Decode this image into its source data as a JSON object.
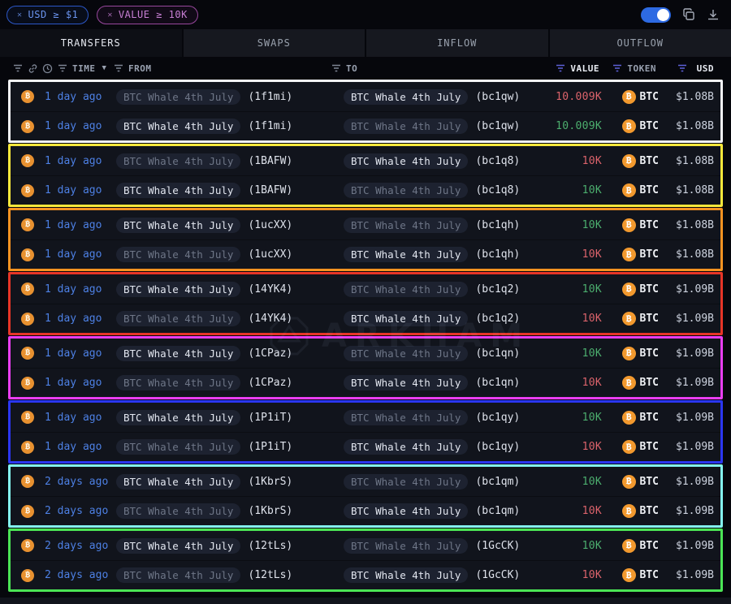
{
  "filters": [
    {
      "close": "✕",
      "label": "USD ≥ $1",
      "color": "#6a93ee"
    },
    {
      "close": "✕",
      "label": "VALUE ≥ 10K",
      "color": "#c77fd4"
    }
  ],
  "controls": {
    "toggle_on": true,
    "icons": [
      "toggle-switch",
      "copy-icon",
      "download-icon"
    ]
  },
  "tabs": [
    {
      "label": "TRANSFERS",
      "active": true
    },
    {
      "label": "SWAPS",
      "active": false
    },
    {
      "label": "INFLOW",
      "active": false
    },
    {
      "label": "OUTFLOW",
      "active": false
    }
  ],
  "columns": {
    "time": "TIME",
    "from": "FROM",
    "to": "TO",
    "value": "VALUE",
    "token": "TOKEN",
    "usd": "USD"
  },
  "header_icons": [
    "filter-icon",
    "link-icon",
    "clock-icon",
    "filter-icon",
    "caret-down-icon"
  ],
  "token": "BTC",
  "watermark": "ARKHAM",
  "colors": {
    "value_red": "#db636b",
    "value_green": "#4cae6e",
    "time_blue": "#4d80e4",
    "accent_toggle": "#2d6ae3",
    "btc_orange": "#f2992e"
  },
  "groups": [
    {
      "border": "#f2f3f5",
      "rows": [
        {
          "time": "1 day ago",
          "from_label": "BTC Whale 4th July",
          "from_addr": "(1f1mi)",
          "to_label": "BTC Whale 4th July",
          "to_addr": "(bc1qw)",
          "hl": "to",
          "dir": "out",
          "value": "10.009K",
          "usd": "$1.08B"
        },
        {
          "time": "1 day ago",
          "from_label": "BTC Whale 4th July",
          "from_addr": "(1f1mi)",
          "to_label": "BTC Whale 4th July",
          "to_addr": "(bc1qw)",
          "hl": "from",
          "dir": "in",
          "value": "10.009K",
          "usd": "$1.08B"
        }
      ]
    },
    {
      "border": "#f9e83b",
      "rows": [
        {
          "time": "1 day ago",
          "from_label": "BTC Whale 4th July",
          "from_addr": "(1BAFW)",
          "to_label": "BTC Whale 4th July",
          "to_addr": "(bc1q8)",
          "hl": "to",
          "dir": "out",
          "value": "10K",
          "usd": "$1.08B"
        },
        {
          "time": "1 day ago",
          "from_label": "BTC Whale 4th July",
          "from_addr": "(1BAFW)",
          "to_label": "BTC Whale 4th July",
          "to_addr": "(bc1q8)",
          "hl": "from",
          "dir": "in",
          "value": "10K",
          "usd": "$1.08B"
        }
      ]
    },
    {
      "border": "#f79321",
      "rows": [
        {
          "time": "1 day ago",
          "from_label": "BTC Whale 4th July",
          "from_addr": "(1ucXX)",
          "to_label": "BTC Whale 4th July",
          "to_addr": "(bc1qh)",
          "hl": "from",
          "dir": "in",
          "value": "10K",
          "usd": "$1.08B"
        },
        {
          "time": "1 day ago",
          "from_label": "BTC Whale 4th July",
          "from_addr": "(1ucXX)",
          "to_label": "BTC Whale 4th July",
          "to_addr": "(bc1qh)",
          "hl": "to",
          "dir": "out",
          "value": "10K",
          "usd": "$1.08B"
        }
      ]
    },
    {
      "border": "#e73527",
      "rows": [
        {
          "time": "1 day ago",
          "from_label": "BTC Whale 4th July",
          "from_addr": "(14YK4)",
          "to_label": "BTC Whale 4th July",
          "to_addr": "(bc1q2)",
          "hl": "from",
          "dir": "in",
          "value": "10K",
          "usd": "$1.09B"
        },
        {
          "time": "1 day ago",
          "from_label": "BTC Whale 4th July",
          "from_addr": "(14YK4)",
          "to_label": "BTC Whale 4th July",
          "to_addr": "(bc1q2)",
          "hl": "to",
          "dir": "out",
          "value": "10K",
          "usd": "$1.09B"
        }
      ]
    },
    {
      "border": "#ea3ef2",
      "rows": [
        {
          "time": "1 day ago",
          "from_label": "BTC Whale 4th July",
          "from_addr": "(1CPaz)",
          "to_label": "BTC Whale 4th July",
          "to_addr": "(bc1qn)",
          "hl": "from",
          "dir": "in",
          "value": "10K",
          "usd": "$1.09B"
        },
        {
          "time": "1 day ago",
          "from_label": "BTC Whale 4th July",
          "from_addr": "(1CPaz)",
          "to_label": "BTC Whale 4th July",
          "to_addr": "(bc1qn)",
          "hl": "to",
          "dir": "out",
          "value": "10K",
          "usd": "$1.09B"
        }
      ]
    },
    {
      "border": "#2b36f2",
      "rows": [
        {
          "time": "1 day ago",
          "from_label": "BTC Whale 4th July",
          "from_addr": "(1P1iT)",
          "to_label": "BTC Whale 4th July",
          "to_addr": "(bc1qy)",
          "hl": "from",
          "dir": "in",
          "value": "10K",
          "usd": "$1.09B"
        },
        {
          "time": "1 day ago",
          "from_label": "BTC Whale 4th July",
          "from_addr": "(1P1iT)",
          "to_label": "BTC Whale 4th July",
          "to_addr": "(bc1qy)",
          "hl": "to",
          "dir": "out",
          "value": "10K",
          "usd": "$1.09B"
        }
      ]
    },
    {
      "border": "#84f4ee",
      "rows": [
        {
          "time": "2 days ago",
          "from_label": "BTC Whale 4th July",
          "from_addr": "(1KbrS)",
          "to_label": "BTC Whale 4th July",
          "to_addr": "(bc1qm)",
          "hl": "from",
          "dir": "in",
          "value": "10K",
          "usd": "$1.09B"
        },
        {
          "time": "2 days ago",
          "from_label": "BTC Whale 4th July",
          "from_addr": "(1KbrS)",
          "to_label": "BTC Whale 4th July",
          "to_addr": "(bc1qm)",
          "hl": "to",
          "dir": "out",
          "value": "10K",
          "usd": "$1.09B"
        }
      ]
    },
    {
      "border": "#4be455",
      "rows": [
        {
          "time": "2 days ago",
          "from_label": "BTC Whale 4th July",
          "from_addr": "(12tLs)",
          "to_label": "BTC Whale 4th July",
          "to_addr": "(1GcCK)",
          "hl": "from",
          "dir": "in",
          "value": "10K",
          "usd": "$1.09B"
        },
        {
          "time": "2 days ago",
          "from_label": "BTC Whale 4th July",
          "from_addr": "(12tLs)",
          "to_label": "BTC Whale 4th July",
          "to_addr": "(1GcCK)",
          "hl": "to",
          "dir": "out",
          "value": "10K",
          "usd": "$1.09B"
        }
      ]
    }
  ]
}
